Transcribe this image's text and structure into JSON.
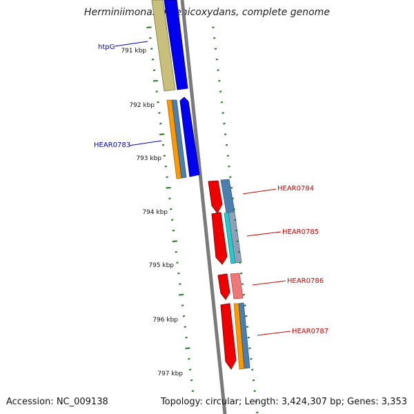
{
  "genome": {
    "title": "Herminiimonas arsenicoxydans, complete genome",
    "accession_label": "Accession: NC_009138",
    "summary": "Topology: circular; Length: 3,424,307 bp; Genes: 3,353"
  },
  "scale": {
    "ticks": [
      "791 kbp",
      "792 kbp",
      "793 kbp",
      "794 kbp",
      "795 kbp",
      "796 kbp",
      "797 kbp"
    ]
  },
  "gene_labels": [
    {
      "name": "htpG",
      "color": "#0000cc",
      "strand": "forward"
    },
    {
      "name": "HEAR0783",
      "color": "#0000cc",
      "strand": "forward"
    },
    {
      "name": "HEAR0784",
      "color": "#cc0000",
      "strand": "reverse"
    },
    {
      "name": "HEAR0785",
      "color": "#cc0000",
      "strand": "reverse"
    },
    {
      "name": "HEAR0786",
      "color": "#cc0000",
      "strand": "reverse"
    },
    {
      "name": "HEAR0787",
      "color": "#cc0000",
      "strand": "reverse"
    }
  ],
  "colors": {
    "backbone": "#7a7a7a",
    "forward_gene": "#0000ee",
    "reverse_gene": "#ee0000",
    "tick": "#1f7a1f",
    "khaki_feature": "#c8c07a",
    "orange_feature": "#ff9900",
    "steelblue_feature": "#4a7fb0",
    "cyan_feature": "#22cccc",
    "pink_feature": "#ee7777"
  }
}
